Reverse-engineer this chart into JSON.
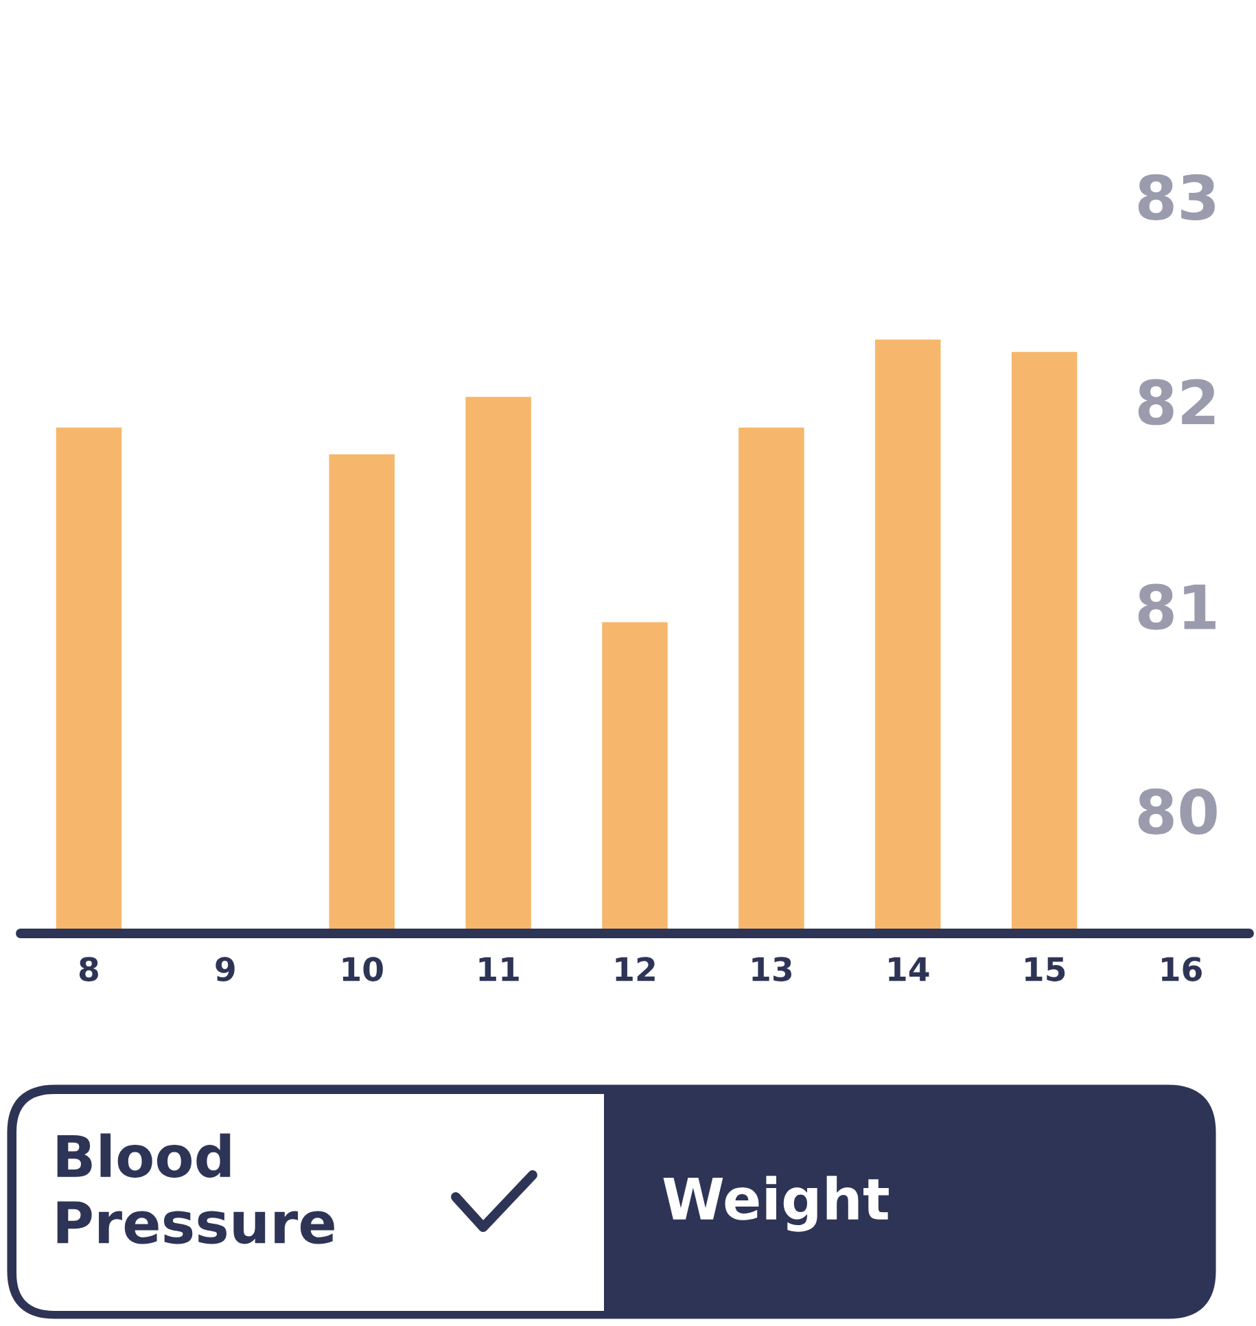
{
  "chart_data": {
    "type": "bar",
    "categories": [
      "8",
      "9",
      "10",
      "11",
      "12",
      "13",
      "14",
      "15",
      "16"
    ],
    "values": [
      81.87,
      null,
      81.74,
      82.02,
      80.92,
      81.87,
      82.3,
      82.24,
      null
    ],
    "color": "#f6b76c",
    "ylim": [
      79.4,
      83
    ],
    "yticks": [
      80,
      81,
      82,
      83
    ],
    "grid": false,
    "legend": false,
    "annotations": [
      "Blood Pressure",
      "Weight"
    ]
  }
}
